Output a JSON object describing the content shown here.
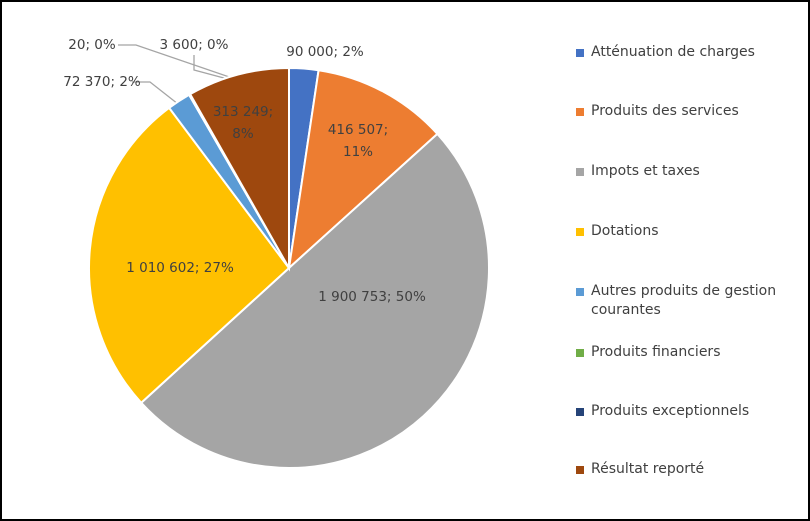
{
  "chart_data": {
    "type": "pie",
    "categories": [
      "Atténuation de charges",
      "Produits des services",
      "Impots et taxes",
      "Dotations",
      "Autres produits de gestion courantes",
      "Produits financiers",
      "Produits exceptionnels",
      "Résultat reporté"
    ],
    "values": [
      90000,
      416507,
      1900753,
      1010602,
      72370,
      20,
      3600,
      313249
    ],
    "value_labels": [
      "90 000; 2%",
      "416 507; 11%",
      "1 900 753; 50%",
      "1 010 602; 27%",
      "72 370; 2%",
      "20; 0%",
      "3 600; 0%",
      "313 249; 8%"
    ],
    "colors": [
      "#4472c4",
      "#ed7d31",
      "#a5a5a5",
      "#ffc000",
      "#5b9bd5",
      "#70ad47",
      "#264478",
      "#9e480e"
    ],
    "legend": "right"
  }
}
